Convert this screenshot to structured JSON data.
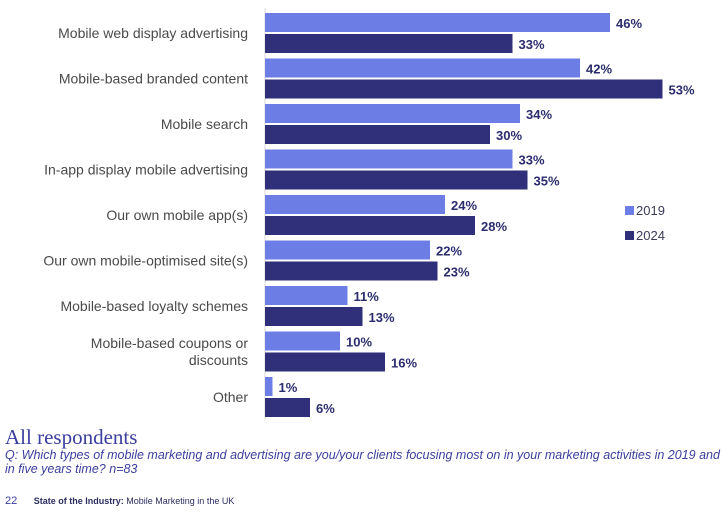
{
  "chart_data": {
    "type": "bar",
    "orientation": "horizontal",
    "categories": [
      [
        "Mobile web display advertising"
      ],
      [
        "Mobile-based branded content"
      ],
      [
        "Mobile search"
      ],
      [
        "In-app display mobile advertising"
      ],
      [
        "Our own mobile app(s)"
      ],
      [
        "Our own mobile-optimised site(s)"
      ],
      [
        "Mobile-based loyalty schemes"
      ],
      [
        "Mobile-based coupons or",
        "discounts"
      ],
      [
        "Other"
      ]
    ],
    "series": [
      {
        "name": "2019",
        "color": "#6c7ee6",
        "values": [
          46,
          42,
          34,
          33,
          24,
          22,
          11,
          10,
          1
        ]
      },
      {
        "name": "2024",
        "color": "#2f2f7a",
        "values": [
          33,
          53,
          30,
          35,
          28,
          23,
          13,
          16,
          6
        ]
      }
    ],
    "value_suffix": "%",
    "xlim": [
      0,
      60
    ],
    "legend": "right",
    "grid": false
  },
  "subtitle": "All respondents",
  "question": "Q: Which types of mobile marketing and advertising are you/your clients focusing most on in your marketing activities in 2019 and in five years time? n=83",
  "footer": {
    "page_number": "22",
    "publication_bold": "State of the Industry:",
    "publication_rest": " Mobile Marketing in the UK"
  }
}
